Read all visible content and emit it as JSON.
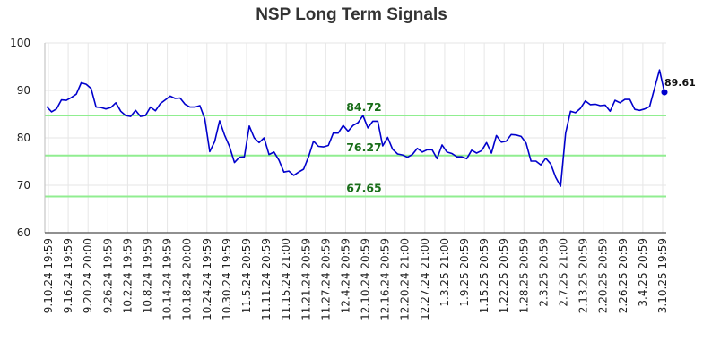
{
  "chart_data": {
    "type": "line",
    "title": "NSP Long Term Signals",
    "xlabel": "",
    "ylabel": "",
    "ylim": [
      60,
      100
    ],
    "yticks": [
      60,
      70,
      80,
      90,
      100
    ],
    "grid": true,
    "legend": "none",
    "xtick_labels": [
      "9.10.24 19:59",
      "9.16.24 19:59",
      "9.20.24 20:00",
      "9.26.24 19:59",
      "10.2.24 19:59",
      "10.8.24 19:59",
      "10.14.24 19:59",
      "10.18.24 20:00",
      "10.24.24 19:59",
      "10.30.24 19:59",
      "11.5.24 20:59",
      "11.11.24 20:59",
      "11.15.24 21:00",
      "11.21.24 20:59",
      "11.27.24 20:59",
      "12.4.24 20:59",
      "12.10.24 20:59",
      "12.16.24 20:59",
      "12.20.24 21:00",
      "12.27.24 21:00",
      "1.3.25 21:00",
      "1.9.25 20:59",
      "1.15.25 20:59",
      "1.22.25 20:59",
      "1.28.25 20:59",
      "2.3.25 20:59",
      "2.7.25 21:00",
      "2.13.25 20:59",
      "2.20.25 20:59",
      "2.26.25 20:59",
      "3.4.25 20:59",
      "3.10.25 19:59"
    ],
    "series": [
      {
        "color": "#0000cc",
        "values": [
          86.6,
          85.5,
          86.1,
          88.0,
          87.9,
          88.5,
          89.2,
          91.6,
          91.3,
          90.4,
          86.5,
          86.4,
          86.1,
          86.4,
          87.4,
          85.6,
          84.7,
          84.5,
          85.8,
          84.5,
          84.7,
          86.5,
          85.7,
          87.2,
          88.0,
          88.8,
          88.3,
          88.4,
          87.1,
          86.5,
          86.5,
          86.8,
          84.0,
          77.1,
          79.2,
          83.6,
          80.6,
          78.2,
          74.8,
          75.9,
          76.0,
          82.5,
          80.0,
          79.0,
          80.0,
          76.5,
          77.0,
          75.3,
          72.8,
          73.0,
          72.1,
          72.8,
          73.4,
          76.0,
          79.3,
          78.2,
          78.1,
          78.4,
          81.0,
          81.0,
          82.6,
          81.4,
          82.6,
          83.2,
          84.7,
          82.1,
          83.5,
          83.5,
          78.3,
          80.1,
          77.6,
          76.6,
          76.4,
          75.9,
          76.5,
          77.8,
          77.0,
          77.5,
          77.5,
          75.6,
          78.5,
          77.0,
          76.7,
          76.0,
          76.0,
          75.6,
          77.4,
          76.8,
          77.3,
          79.0,
          76.8,
          80.5,
          79.1,
          79.3,
          80.7,
          80.6,
          80.3,
          78.9,
          75.1,
          75.1,
          74.3,
          75.7,
          74.5,
          71.7,
          69.8,
          81.0,
          85.6,
          85.3,
          86.2,
          87.8,
          87.0,
          87.1,
          86.8,
          86.9,
          85.6,
          87.9,
          87.4,
          88.1,
          88.1,
          86.0,
          85.8,
          86.1,
          86.6,
          90.5,
          94.3,
          89.61
        ]
      }
    ],
    "horizontal_lines": [
      {
        "value": 84.72,
        "label": "84.72",
        "color": "#90ee90"
      },
      {
        "value": 76.27,
        "label": "76.27",
        "color": "#90ee90"
      },
      {
        "value": 67.65,
        "label": "67.65",
        "color": "#90ee90"
      }
    ],
    "last_point_label": "89.61",
    "colors": {
      "line": "#0000cc",
      "signal_line": "#90ee90",
      "signal_text": "#1a6e1a",
      "grid": "#e6e6e6"
    }
  }
}
